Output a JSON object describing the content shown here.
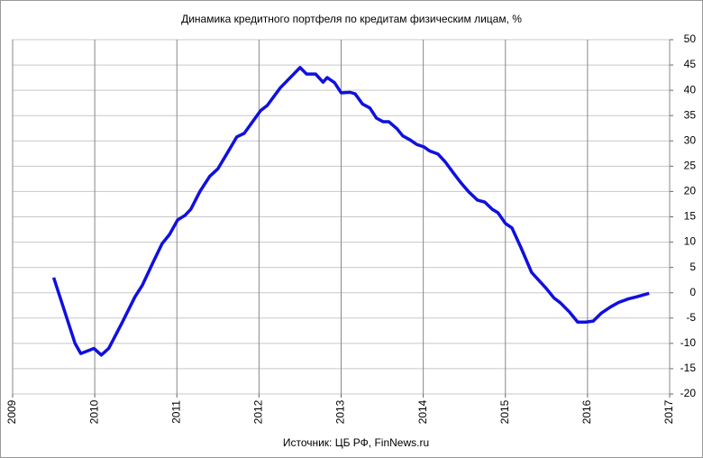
{
  "chart_data": {
    "type": "line",
    "title": "Динамика кредитного портфеля  по кредитам физическим лицам, %",
    "source": "Источник: ЦБ РФ, FinNews.ru",
    "xlim": [
      2009,
      2017
    ],
    "xticks": [
      2009,
      2010,
      2011,
      2012,
      2013,
      2014,
      2015,
      2016,
      2017
    ],
    "ylim": [
      -20,
      50
    ],
    "yticks": [
      -20,
      -15,
      -10,
      -5,
      0,
      5,
      10,
      15,
      20,
      25,
      30,
      35,
      40,
      45,
      50
    ],
    "grid": true,
    "y_axis_side": "right",
    "series": [
      {
        "color": "#1010e0",
        "x": [
          2009.5,
          2009.76,
          2009.83,
          2009.99,
          2010.08,
          2010.17,
          2010.33,
          2010.49,
          2010.58,
          2010.71,
          2010.82,
          2010.91,
          2011.01,
          2011.1,
          2011.17,
          2011.28,
          2011.4,
          2011.5,
          2011.61,
          2011.73,
          2011.82,
          2012.02,
          2012.1,
          2012.26,
          2012.47,
          2012.5,
          2012.58,
          2012.69,
          2012.78,
          2012.83,
          2012.92,
          2013.0,
          2013.11,
          2013.17,
          2013.26,
          2013.35,
          2013.43,
          2013.51,
          2013.58,
          2013.68,
          2013.75,
          2013.84,
          2013.92,
          2014.01,
          2014.08,
          2014.18,
          2014.27,
          2014.37,
          2014.46,
          2014.55,
          2014.66,
          2014.75,
          2014.84,
          2014.91,
          2015.0,
          2015.08,
          2015.19,
          2015.32,
          2015.41,
          2015.5,
          2015.59,
          2015.67,
          2015.78,
          2015.88,
          2015.98,
          2016.07,
          2016.17,
          2016.28,
          2016.38,
          2016.5,
          2016.6,
          2016.75
        ],
        "values": [
          3.0,
          -10,
          -12,
          -11,
          -12.3,
          -11,
          -6,
          -0.8,
          1.5,
          6,
          9.7,
          11.5,
          14.4,
          15.3,
          16.5,
          20,
          23,
          24.5,
          27.5,
          30.8,
          31.5,
          36,
          37,
          40.5,
          44,
          44.5,
          43.2,
          43.2,
          41.6,
          42.5,
          41.5,
          39.5,
          39.6,
          39.3,
          37.3,
          36.5,
          34.5,
          33.8,
          33.8,
          32.4,
          31,
          30.2,
          29.3,
          28.8,
          28,
          27.4,
          25.8,
          23.6,
          21.7,
          20,
          18.3,
          17.9,
          16.5,
          15.8,
          13.7,
          12.8,
          8.9,
          4,
          2.4,
          0.8,
          -1,
          -2,
          -3.8,
          -5.8,
          -5.8,
          -5.6,
          -4,
          -2.8,
          -1.9,
          -1.2,
          -0.8,
          -0.1
        ]
      }
    ]
  }
}
